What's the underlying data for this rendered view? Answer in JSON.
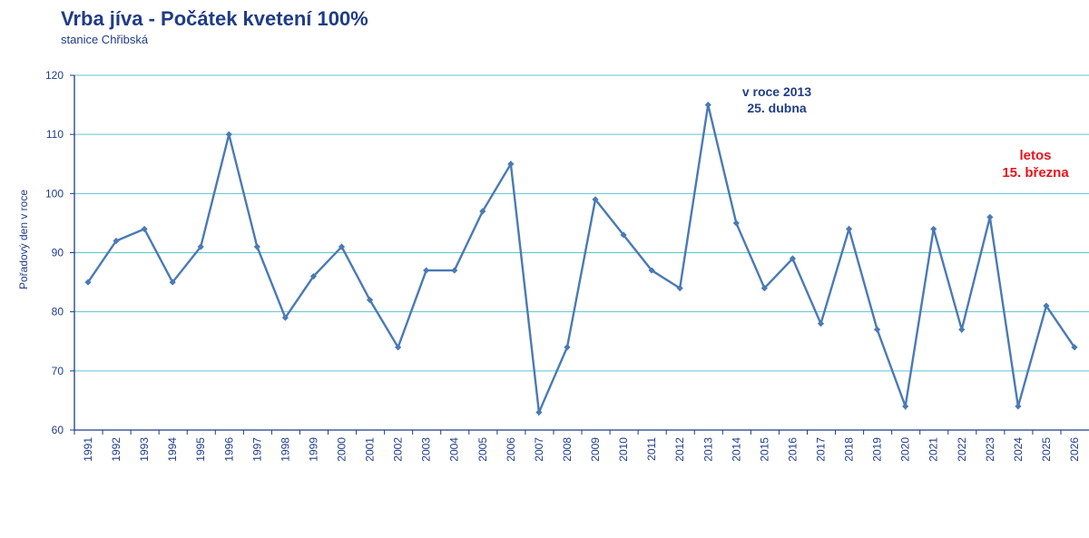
{
  "chart_data": {
    "type": "line",
    "title": "Vrba jíva - Počátek kvetení 100%",
    "subtitle": "stanice Chřibská",
    "xlabel": "",
    "ylabel": "Pořadový den v roce",
    "ylim": [
      60,
      120
    ],
    "yticks": [
      60,
      70,
      80,
      90,
      100,
      110,
      120
    ],
    "grid": true,
    "categories": [
      "1991",
      "1992",
      "1993",
      "1994",
      "1995",
      "1996",
      "1997",
      "1998",
      "1999",
      "2000",
      "2001",
      "2002",
      "2003",
      "2004",
      "2005",
      "2006",
      "2007",
      "2008",
      "2009",
      "2010",
      "2011",
      "2012",
      "2013",
      "2014",
      "2015",
      "2016",
      "2017",
      "2018",
      "2019",
      "2020",
      "2021",
      "2022",
      "2023",
      "2024",
      "2025",
      "2026"
    ],
    "series": [
      {
        "name": "Pořadový den",
        "color": "#4a7ab5",
        "values": [
          85,
          92,
          94,
          85,
          91,
          110,
          91,
          79,
          86,
          91,
          82,
          74,
          87,
          87,
          97,
          105,
          63,
          74,
          99,
          93,
          87,
          84,
          115,
          95,
          84,
          89,
          78,
          94,
          77,
          64,
          94,
          77,
          96,
          64,
          81,
          74
        ]
      }
    ],
    "annotations": [
      {
        "lines": [
          "v roce 2013",
          "25. dubna"
        ],
        "color": "#1f3c88"
      },
      {
        "lines": [
          "letos",
          "15. března"
        ],
        "color": "#e8141c"
      }
    ],
    "colors": {
      "grid": "#5fc3cf",
      "axis": "#1f3c88",
      "text": "#1f3c88"
    }
  }
}
